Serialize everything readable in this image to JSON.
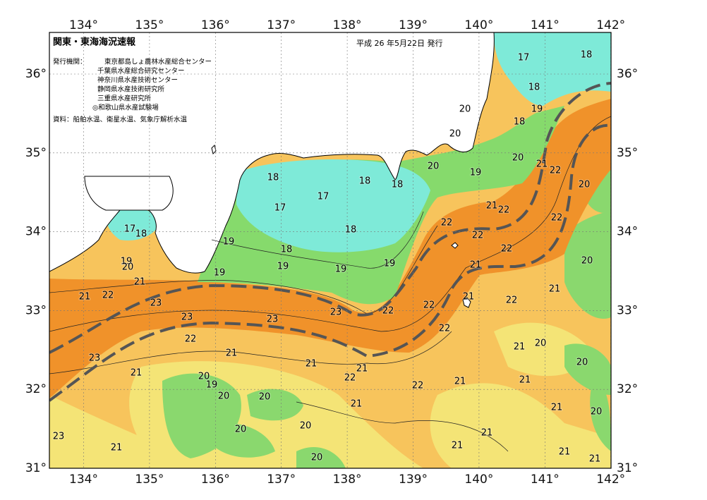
{
  "header": {
    "title": "関東・東海海況速報",
    "date": "平成 26 年5月22日 発行"
  },
  "issuers": {
    "label": "発行機関：",
    "organizations": [
      "東京都島しょ農林水産総合センター",
      "千葉県水産総合研究センター",
      "神奈川県水産技術センター",
      "静岡県水産技術研究所",
      "三重県水産研究所",
      "◎和歌山県水産試験場"
    ]
  },
  "source": "資料：船舶水温、衛星水温、気象庁解析水温",
  "map": {
    "longitude_labels": [
      "134°",
      "135°",
      "136°",
      "137°",
      "138°",
      "139°",
      "140°",
      "141°",
      "142°"
    ],
    "latitude_labels": [
      "36°",
      "35°",
      "34°",
      "33°",
      "32°",
      "31°"
    ],
    "temperature_labels": [
      17,
      18,
      18,
      19,
      20,
      20,
      18,
      20,
      21,
      22,
      20,
      19,
      20,
      18,
      18,
      18,
      17,
      17,
      21,
      22,
      22,
      22,
      22,
      22,
      18,
      18,
      17,
      18,
      19,
      19,
      20,
      19,
      19,
      19,
      19,
      21,
      20,
      21,
      21,
      22,
      23,
      21,
      21,
      22,
      22,
      22,
      23,
      23,
      23,
      22,
      22,
      21,
      20,
      21,
      23,
      21,
      21,
      20,
      22,
      21,
      20,
      19,
      21,
      21,
      22,
      20,
      20,
      21,
      21,
      20,
      20,
      20,
      23,
      21,
      21,
      21,
      21,
      20,
      21
    ]
  }
}
